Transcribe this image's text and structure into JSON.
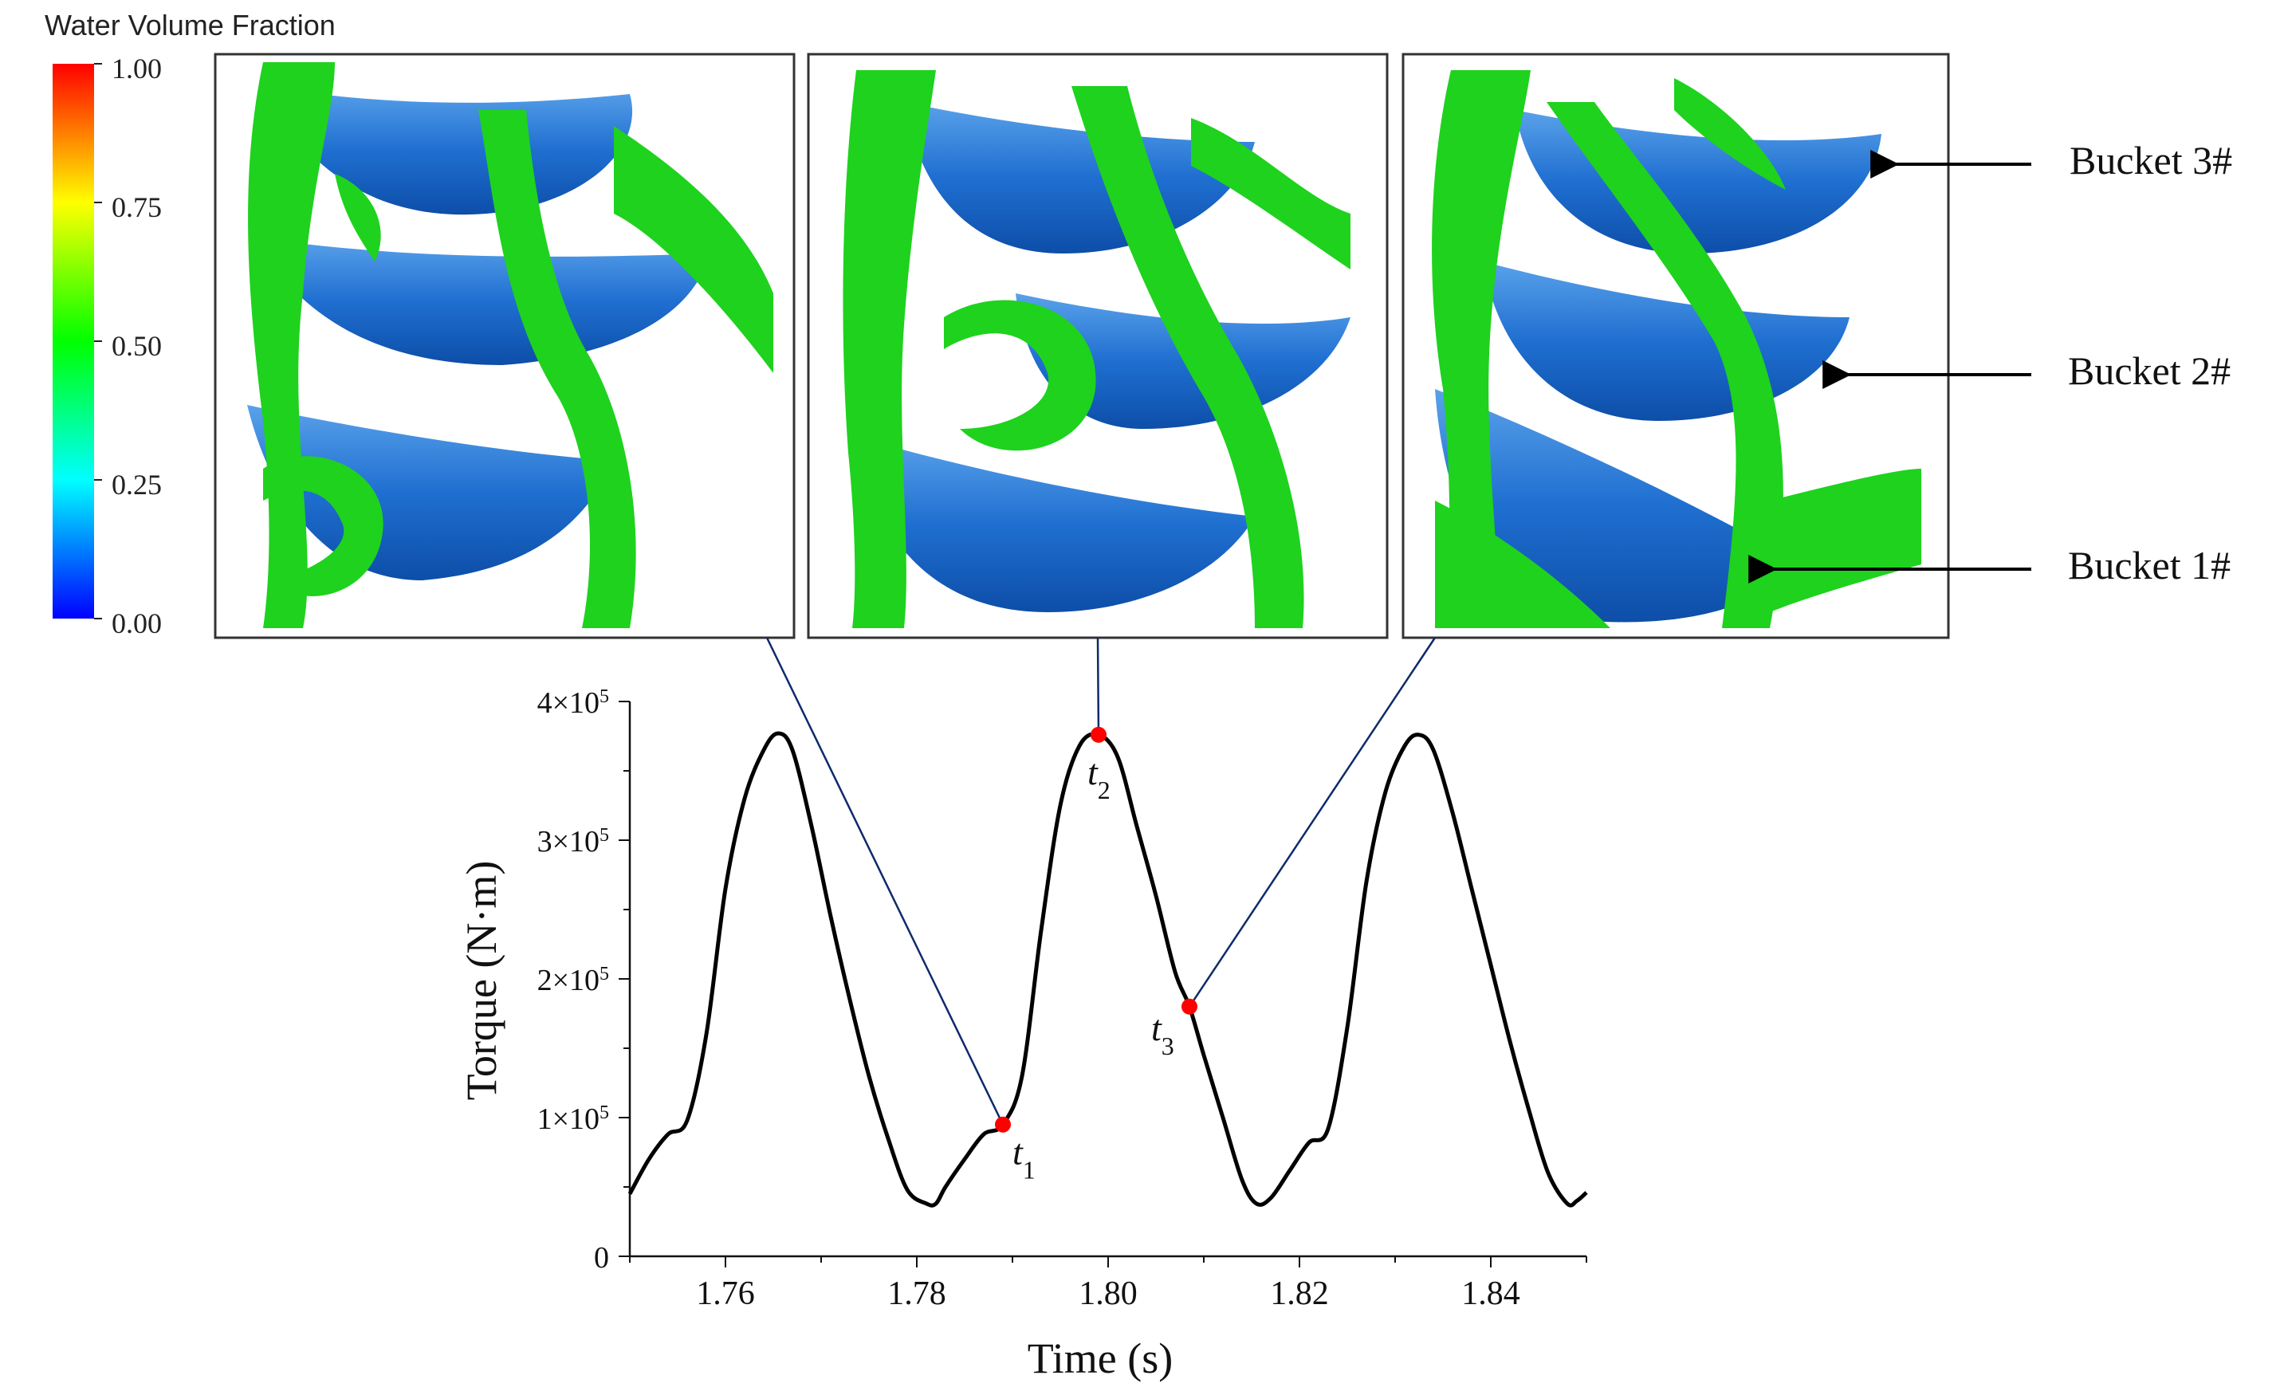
{
  "colorbar": {
    "title": "Water Volume Fraction",
    "ticks": [
      "1.00",
      "0.75",
      "0.50",
      "0.25",
      "0.00"
    ],
    "tick_values": [
      1.0,
      0.75,
      0.5,
      0.25,
      0.0
    ],
    "gradient_colors": [
      "#ff0000",
      "#ff7f00",
      "#ffff00",
      "#7fff00",
      "#00ff00",
      "#00ff7f",
      "#00ffff",
      "#007fff",
      "#0000ff"
    ]
  },
  "panels": [
    {
      "linked_point": "t1"
    },
    {
      "linked_point": "t2"
    },
    {
      "linked_point": "t3"
    }
  ],
  "bucket_labels": [
    "Bucket 3#",
    "Bucket 2#",
    "Bucket 1#"
  ],
  "colors": {
    "curve": "#000000",
    "marker": "#ff0000",
    "connector": "#0d2a6b",
    "bucket_blue": "#1f6fd1",
    "water_green": "#1ed21e"
  },
  "chart_data": {
    "type": "line",
    "xlabel": "Time (s)",
    "ylabel": "Torque (N·m)",
    "xlim": [
      1.75,
      1.85
    ],
    "ylim": [
      0,
      400000
    ],
    "x_ticks": [
      1.76,
      1.78,
      1.8,
      1.82,
      1.84
    ],
    "x_tick_labels": [
      "1.76",
      "1.78",
      "1.80",
      "1.82",
      "1.84"
    ],
    "y_ticks": [
      0,
      100000,
      200000,
      300000,
      400000
    ],
    "y_tick_labels": [
      {
        "mantissa": "0",
        "exp": ""
      },
      {
        "mantissa": "1×10",
        "exp": "5"
      },
      {
        "mantissa": "2×10",
        "exp": "5"
      },
      {
        "mantissa": "3×10",
        "exp": "5"
      },
      {
        "mantissa": "4×10",
        "exp": "5"
      }
    ],
    "series": [
      {
        "x": [
          1.75,
          1.752,
          1.754,
          1.756,
          1.758,
          1.76,
          1.762,
          1.764,
          1.7655,
          1.767,
          1.769,
          1.771,
          1.773,
          1.775,
          1.777,
          1.779,
          1.781,
          1.782,
          1.783,
          1.785,
          1.787,
          1.789,
          1.791,
          1.793,
          1.795,
          1.797,
          1.799,
          1.801,
          1.803,
          1.805,
          1.807,
          1.8085,
          1.81,
          1.812,
          1.814,
          1.8155,
          1.817,
          1.819,
          1.821,
          1.823,
          1.825,
          1.827,
          1.829,
          1.831,
          1.8325,
          1.834,
          1.836,
          1.838,
          1.84,
          1.842,
          1.844,
          1.846,
          1.848,
          1.849,
          1.85
        ],
        "y": [
          45000,
          70000,
          88000,
          98000,
          160000,
          265000,
          330000,
          365000,
          377000,
          365000,
          310000,
          245000,
          185000,
          130000,
          85000,
          48000,
          38000,
          38000,
          50000,
          70000,
          88000,
          95000,
          130000,
          235000,
          325000,
          368000,
          376000,
          360000,
          310000,
          260000,
          205000,
          180000,
          145000,
          100000,
          55000,
          38000,
          42000,
          62000,
          82000,
          92000,
          165000,
          270000,
          335000,
          368000,
          376000,
          365000,
          320000,
          265000,
          210000,
          155000,
          105000,
          60000,
          38000,
          40000,
          46000
        ]
      }
    ],
    "annotations": [
      {
        "name": "t",
        "sub": "1",
        "x": 1.789,
        "y": 95000
      },
      {
        "name": "t",
        "sub": "2",
        "x": 1.799,
        "y": 376000
      },
      {
        "name": "t",
        "sub": "3",
        "x": 1.8085,
        "y": 180000
      }
    ]
  }
}
